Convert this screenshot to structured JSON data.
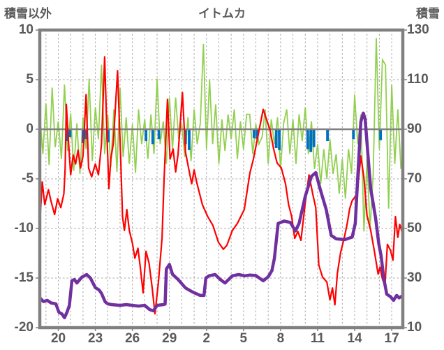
{
  "title": "イトムカ",
  "left_axis": {
    "label": "積雪以外",
    "ticks": [
      10,
      5,
      0,
      -5,
      -10,
      -15,
      -20
    ],
    "min": -20,
    "max": 10
  },
  "right_axis": {
    "label": "積雪",
    "ticks": [
      130,
      110,
      90,
      70,
      50,
      30,
      10
    ],
    "min": 10,
    "max": 130
  },
  "x_axis": {
    "tick_labels": [
      "20",
      "23",
      "26",
      "29",
      "2",
      "5",
      "8",
      "11",
      "14",
      "17"
    ],
    "tick_positions": [
      1.5,
      4.5,
      7.5,
      10.5,
      13.5,
      16.5,
      19.5,
      22.5,
      25.5,
      28.5
    ],
    "range": [
      0,
      29.4
    ],
    "gridline_step": 1
  },
  "colors": {
    "red": "#FF0000",
    "green": "#92D050",
    "blue": "#0070C0",
    "purple": "#7030A0",
    "frame": "#808080",
    "zero_line": "#808080",
    "grid": "#A6A6A6",
    "text": "#595959"
  },
  "chart_data": {
    "type": "line",
    "title": "イトムカ",
    "x_unit": "days (axis labels are days of month, daily gridlines)",
    "left_ylim": [
      -20,
      10
    ],
    "right_ylim": [
      10,
      130
    ],
    "grid": "daily vertical dashed + horizontal dashed at ticks, solid gray zero line",
    "legend": "none visible",
    "series": [
      {
        "name": "red-series",
        "axis": "left",
        "style": "line",
        "color": "#FF0000",
        "width": 2.2,
        "points": [
          [
            0,
            -9.5
          ],
          [
            0.2,
            -5.3
          ],
          [
            0.4,
            -7.6
          ],
          [
            0.7,
            -6.1
          ],
          [
            0.9,
            -7.2
          ],
          [
            1.2,
            -8.6
          ],
          [
            1.45,
            -7.0
          ],
          [
            1.7,
            -7.9
          ],
          [
            1.95,
            -6.5
          ],
          [
            2.05,
            -4.0
          ],
          [
            2.15,
            2.5
          ],
          [
            2.3,
            -0.8
          ],
          [
            2.5,
            -4.6
          ],
          [
            2.7,
            -2.6
          ],
          [
            2.9,
            -3.5
          ],
          [
            3.1,
            -2.1
          ],
          [
            3.3,
            -3.9
          ],
          [
            3.5,
            -2.7
          ],
          [
            3.75,
            3.5
          ],
          [
            3.95,
            -3.9
          ],
          [
            4.2,
            -4.8
          ],
          [
            4.5,
            -3.5
          ],
          [
            4.75,
            -4.6
          ],
          [
            5.0,
            -1.5
          ],
          [
            5.25,
            7.3
          ],
          [
            5.45,
            -1.0
          ],
          [
            5.6,
            -6.0
          ],
          [
            5.75,
            -3.0
          ],
          [
            5.95,
            -1.5
          ],
          [
            6.3,
            5.9
          ],
          [
            6.55,
            -3.0
          ],
          [
            6.7,
            -8.8
          ],
          [
            6.85,
            -10.2
          ],
          [
            7.05,
            -8.1
          ],
          [
            7.25,
            -10.2
          ],
          [
            7.5,
            -11.5
          ],
          [
            7.7,
            -13.0
          ],
          [
            7.95,
            -12.0
          ],
          [
            8.15,
            -14.0
          ],
          [
            8.37,
            -16.5
          ],
          [
            8.6,
            -12.3
          ],
          [
            8.85,
            -13.5
          ],
          [
            9.1,
            -16.0
          ],
          [
            9.33,
            -18.6
          ],
          [
            9.6,
            -15.5
          ],
          [
            9.9,
            -11.0
          ],
          [
            10.06,
            -5.3
          ],
          [
            10.34,
            3.0
          ],
          [
            10.55,
            -3.0
          ],
          [
            10.8,
            -2.0
          ],
          [
            11.0,
            -4.3
          ],
          [
            11.2,
            -2.5
          ],
          [
            11.55,
            3.7
          ],
          [
            11.8,
            -2.3
          ],
          [
            12.05,
            -3.9
          ],
          [
            12.3,
            -5.5
          ],
          [
            12.5,
            -4.1
          ],
          [
            12.7,
            -5.3
          ],
          [
            13.17,
            -7.6
          ],
          [
            13.6,
            -8.8
          ],
          [
            14.02,
            -9.7
          ],
          [
            14.47,
            -11.4
          ],
          [
            14.87,
            -12.1
          ],
          [
            15.15,
            -11.7
          ],
          [
            15.6,
            -10.2
          ],
          [
            16.0,
            -9.5
          ],
          [
            16.56,
            -8.1
          ],
          [
            17.02,
            -4.4
          ],
          [
            17.3,
            -3.0
          ],
          [
            18.09,
            2.0
          ],
          [
            18.65,
            -0.1
          ],
          [
            18.94,
            -2.0
          ],
          [
            19.22,
            -3.4
          ],
          [
            19.56,
            -3.9
          ],
          [
            19.9,
            -5.5
          ],
          [
            20.15,
            -7.6
          ],
          [
            20.4,
            -8.8
          ],
          [
            20.65,
            -11.0
          ],
          [
            20.9,
            -10.3
          ],
          [
            21.15,
            -11.2
          ],
          [
            21.5,
            -7.4
          ],
          [
            21.8,
            -4.6
          ],
          [
            22.1,
            -6.5
          ],
          [
            22.35,
            -7.9
          ],
          [
            22.6,
            -13.7
          ],
          [
            22.9,
            -14.9
          ],
          [
            23.25,
            -15.4
          ],
          [
            23.5,
            -17.2
          ],
          [
            23.7,
            -16.0
          ],
          [
            23.9,
            -17.7
          ],
          [
            24.1,
            -14.5
          ],
          [
            24.35,
            -12.5
          ],
          [
            24.7,
            -10.7
          ],
          [
            24.9,
            -9.5
          ],
          [
            25.1,
            -8.0
          ],
          [
            25.3,
            -7.2
          ],
          [
            25.6,
            -6.7
          ],
          [
            25.8,
            -5.3
          ],
          [
            26.0,
            -2.7
          ],
          [
            26.25,
            -4.9
          ],
          [
            26.5,
            -8.7
          ],
          [
            26.8,
            -10.2
          ],
          [
            27.1,
            -12.3
          ],
          [
            27.4,
            -14.6
          ],
          [
            27.55,
            -13.9
          ],
          [
            27.75,
            -15.1
          ],
          [
            27.95,
            -15.8
          ],
          [
            28.15,
            -11.6
          ],
          [
            28.4,
            -12.2
          ],
          [
            28.6,
            -13.2
          ],
          [
            28.8,
            -8.8
          ],
          [
            29.0,
            -10.9
          ],
          [
            29.15,
            -9.6
          ],
          [
            29.35,
            -10.4
          ]
        ]
      },
      {
        "name": "green-series",
        "axis": "left",
        "style": "line",
        "color": "#92D050",
        "width": 1.8,
        "x_start": 0,
        "x_step": 0.25,
        "values": [
          1.5,
          -2.5,
          2.6,
          -3.6,
          4.2,
          -1.8,
          0.8,
          -3.0,
          4.5,
          -2.2,
          1.6,
          -4.2,
          0.6,
          -4.5,
          1.2,
          -2.0,
          5.1,
          -3.2,
          2.2,
          -1.0,
          6.5,
          -2.5,
          1.5,
          -3.8,
          2.0,
          -4.3,
          4.2,
          -2.8,
          1.2,
          -3.5,
          0.5,
          -4.4,
          2.0,
          -1.5,
          1.0,
          -3.0,
          1.5,
          -2.5,
          5.1,
          -1.5,
          0.8,
          -3.5,
          3.2,
          -2.0,
          3.2,
          -1.0,
          0.5,
          -2.8,
          1.2,
          -3.2,
          2.0,
          -1.5,
          0.6,
          8.6,
          -2.0,
          5.0,
          -1.5,
          2.5,
          -3.5,
          1.0,
          -2.2,
          1.5,
          -1.0,
          2.0,
          -3.0,
          0.8,
          -2.0,
          1.5,
          1.5,
          -2.5,
          0.5,
          -1.5,
          -0.8,
          2.0,
          -3.5,
          1.0,
          -1.5,
          1.2,
          -4.0,
          0.6,
          2.0,
          -2.5,
          1.0,
          -3.5,
          1.5,
          -1.2,
          2.2,
          -2.5,
          0.8,
          -4.0,
          -1.5,
          -5.5,
          -2.0,
          -5.0,
          -1.0,
          -4.5,
          -2.5,
          -6.5,
          -3.0,
          -7.0,
          -2.0,
          -4.5,
          3.5,
          -1.5,
          1.5,
          -10.3,
          -3.0,
          -10.0,
          -4.5,
          9.2,
          -2.0,
          7.0,
          6.5,
          -8.0,
          4.5,
          -3.5,
          2.0,
          -4.0
        ]
      },
      {
        "name": "blue-series",
        "axis": "left",
        "style": "bar",
        "color": "#0070C0",
        "bar_width": 0.22,
        "points": [
          [
            2.2,
            -1.2
          ],
          [
            2.45,
            -0.8
          ],
          [
            3.5,
            -1.4
          ],
          [
            3.75,
            -1.0
          ],
          [
            5.55,
            -1.3
          ],
          [
            8.6,
            -1.2
          ],
          [
            9.15,
            -1.5
          ],
          [
            9.65,
            -1.0
          ],
          [
            11.8,
            -1.5
          ],
          [
            12.1,
            -2.1
          ],
          [
            17.35,
            -0.9
          ],
          [
            17.6,
            -1.0
          ],
          [
            19.15,
            -1.9
          ],
          [
            19.4,
            -2.1
          ],
          [
            21.7,
            -2.0
          ],
          [
            21.95,
            -2.3
          ],
          [
            22.2,
            -1.8
          ],
          [
            23.3,
            -1.2
          ],
          [
            25.4,
            -1.0
          ],
          [
            27.6,
            -1.1
          ]
        ]
      },
      {
        "name": "purple-series",
        "axis": "right",
        "style": "line",
        "color": "#7030A0",
        "width": 4.5,
        "points": [
          [
            0,
            22
          ],
          [
            0.3,
            20.5
          ],
          [
            0.6,
            21
          ],
          [
            0.9,
            20
          ],
          [
            1.3,
            19.6
          ],
          [
            1.55,
            16.2
          ],
          [
            1.8,
            15.5
          ],
          [
            2.0,
            14
          ],
          [
            2.2,
            16.2
          ],
          [
            2.4,
            19
          ],
          [
            2.6,
            28.9
          ],
          [
            2.8,
            29.4
          ],
          [
            3.0,
            28
          ],
          [
            3.4,
            30.3
          ],
          [
            3.8,
            31.4
          ],
          [
            4.1,
            30
          ],
          [
            4.5,
            26.1
          ],
          [
            4.8,
            25.2
          ],
          [
            5.0,
            23.8
          ],
          [
            5.3,
            20.4
          ],
          [
            5.5,
            19.6
          ],
          [
            5.8,
            19.3
          ],
          [
            6.5,
            19
          ],
          [
            7.0,
            19.3
          ],
          [
            7.5,
            19
          ],
          [
            8.0,
            18.7
          ],
          [
            8.5,
            19
          ],
          [
            8.9,
            17.3
          ],
          [
            9.2,
            16.8
          ],
          [
            9.5,
            19
          ],
          [
            10.0,
            19.3
          ],
          [
            10.15,
            19.5
          ],
          [
            10.25,
            33.6
          ],
          [
            10.5,
            35.5
          ],
          [
            10.75,
            31.5
          ],
          [
            10.9,
            30.8
          ],
          [
            11.2,
            29.4
          ],
          [
            11.8,
            26
          ],
          [
            12.4,
            24.3
          ],
          [
            13.0,
            23
          ],
          [
            13.3,
            23
          ],
          [
            13.45,
            30
          ],
          [
            13.7,
            30.9
          ],
          [
            14.2,
            31.4
          ],
          [
            14.6,
            29.5
          ],
          [
            15.0,
            28
          ],
          [
            15.6,
            30.9
          ],
          [
            16.1,
            31.4
          ],
          [
            16.6,
            30.9
          ],
          [
            17.0,
            31.2
          ],
          [
            17.5,
            31
          ],
          [
            18.1,
            28.9
          ],
          [
            18.5,
            30.5
          ],
          [
            18.8,
            33
          ],
          [
            19.0,
            38
          ],
          [
            19.15,
            45
          ],
          [
            19.3,
            52
          ],
          [
            19.8,
            53
          ],
          [
            20.3,
            52.4
          ],
          [
            20.7,
            49
          ],
          [
            21.0,
            52
          ],
          [
            21.5,
            63
          ],
          [
            22.0,
            71
          ],
          [
            22.35,
            72.5
          ],
          [
            22.7,
            66
          ],
          [
            23.2,
            57.6
          ],
          [
            23.6,
            47.2
          ],
          [
            24.0,
            45.8
          ],
          [
            24.7,
            45.5
          ],
          [
            25.3,
            46.5
          ],
          [
            25.55,
            52
          ],
          [
            25.8,
            75
          ],
          [
            26.0,
            93
          ],
          [
            26.2,
            96.5
          ],
          [
            26.35,
            94
          ],
          [
            26.6,
            78
          ],
          [
            26.8,
            66
          ],
          [
            27.0,
            60
          ],
          [
            27.2,
            54
          ],
          [
            27.45,
            44
          ],
          [
            27.65,
            38.8
          ],
          [
            27.85,
            30
          ],
          [
            28.1,
            23.5
          ],
          [
            28.4,
            22.5
          ],
          [
            28.65,
            21
          ],
          [
            28.9,
            23
          ],
          [
            29.1,
            22
          ],
          [
            29.35,
            22.8
          ]
        ]
      }
    ]
  }
}
